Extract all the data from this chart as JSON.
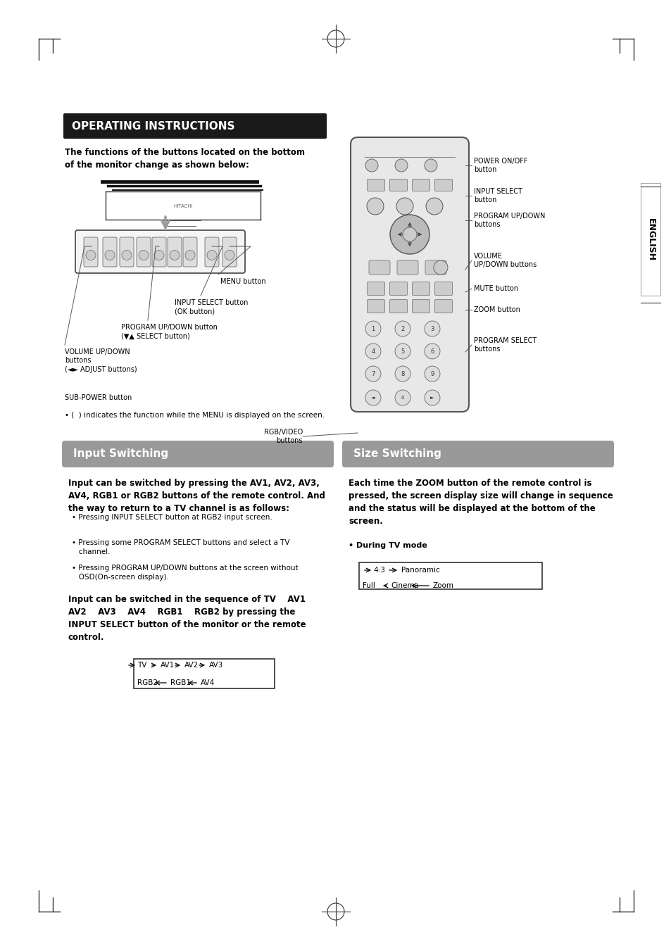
{
  "bg_color": "#ffffff",
  "page_width": 9.54,
  "page_height": 13.51,
  "title_bar_text": "OPERATING INSTRUCTIONS",
  "intro_text": "The functions of the buttons located on the bottom\nof the monitor change as shown below:",
  "note_text": "• (  ) indicates the function while the MENU is displayed on the screen.",
  "section1_text": "Input Switching",
  "section2_text": "Size Switching",
  "section_bar_color": "#999999",
  "input_bold_text1": "Input can be switched by pressing the AV1, AV2, AV3,\nAV4, RGB1 or RGB2 buttons of the remote control. And\nthe way to return to a TV channel is as follows:",
  "input_bullets": [
    "• Pressing INPUT SELECT button at RGB2 input screen.",
    "• Pressing some PROGRAM SELECT buttons and select a TV\n   channel.",
    "• Pressing PROGRAM UP/DOWN buttons at the screen without\n   OSD(On-screen display)."
  ],
  "input_bold_text2": "Input can be switched in the sequence of TV    AV1\nAV2    AV3    AV4    RGB1    RGB2 by pressing the\nINPUT SELECT button of the monitor or the remote\ncontrol.",
  "size_bold_text": "Each time the ZOOM button of the remote control is\npressed, the screen display size will change in sequence\nand the status will be displayed at the bottom of the\nscreen.",
  "size_during_tv": "• During TV mode",
  "english_text": "ENGLISH",
  "lbl_menu": "MENU button",
  "lbl_input_sel": "INPUT SELECT button\n(OK button)",
  "lbl_prog_updown": "PROGRAM UP/DOWN button\n(▼▲ SELECT button)",
  "lbl_volume": "VOLUME UP/DOWN\nbuttons\n(◄► ADJUST buttons)",
  "lbl_sub_power": "SUB-POWER button",
  "lbl_power_onoff": "POWER ON/OFF\nbutton",
  "lbl_input_select": "INPUT SELECT\nbutton",
  "lbl_prog_updown_r": "PROGRAM UP/DOWN\nbuttons",
  "lbl_volume_r": "VOLUME\nUP/DOWN buttons",
  "lbl_mute": "MUTE button",
  "lbl_zoom": "ZOOM button",
  "lbl_prog_select": "PROGRAM SELECT\nbuttons",
  "lbl_rgb_video": "RGB/VIDEO\nbuttons"
}
